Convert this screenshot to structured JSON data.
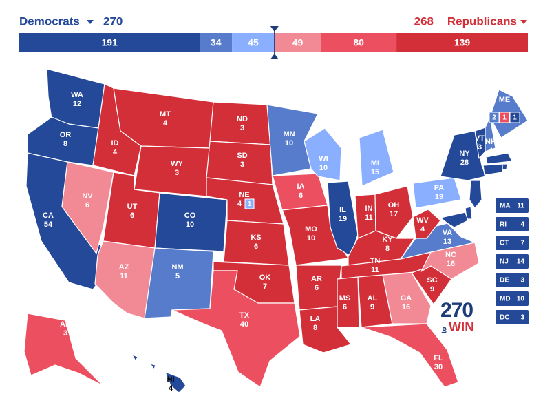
{
  "header": {
    "left_party": "Democrats",
    "left_total": 270,
    "right_total": 268,
    "right_party": "Republicans"
  },
  "ratings": [
    {
      "value": 191,
      "color": "#244999"
    },
    {
      "value": 34,
      "color": "#577ccc"
    },
    {
      "value": 45,
      "color": "#8aafff"
    },
    {
      "value": 49,
      "color": "#f28a95"
    },
    {
      "value": 80,
      "color": "#ec5060"
    },
    {
      "value": 139,
      "color": "#d22f38"
    }
  ],
  "states": [
    {
      "label": "WA",
      "ev": 12,
      "rating": 0
    },
    {
      "label": "OR",
      "ev": 8,
      "rating": 0
    },
    {
      "label": "CA",
      "ev": 54,
      "rating": 0
    },
    {
      "label": "NV",
      "ev": 6,
      "rating": 3
    },
    {
      "label": "ID",
      "ev": 4,
      "rating": 5
    },
    {
      "label": "MT",
      "ev": 4,
      "rating": 5
    },
    {
      "label": "WY",
      "ev": 3,
      "rating": 5
    },
    {
      "label": "UT",
      "ev": 6,
      "rating": 5
    },
    {
      "label": "AZ",
      "ev": 11,
      "rating": 3
    },
    {
      "label": "CO",
      "ev": 10,
      "rating": 0
    },
    {
      "label": "NM",
      "ev": 5,
      "rating": 1
    },
    {
      "label": "ND",
      "ev": 3,
      "rating": 5
    },
    {
      "label": "SD",
      "ev": 3,
      "rating": 5
    },
    {
      "label": "NE",
      "ev": 4,
      "rating": 5
    },
    {
      "label": "KS",
      "ev": 6,
      "rating": 5
    },
    {
      "label": "OK",
      "ev": 7,
      "rating": 5
    },
    {
      "label": "TX",
      "ev": 40,
      "rating": 4
    },
    {
      "label": "MN",
      "ev": 10,
      "rating": 1
    },
    {
      "label": "IA",
      "ev": 6,
      "rating": 4
    },
    {
      "label": "MO",
      "ev": 10,
      "rating": 5
    },
    {
      "label": "AR",
      "ev": 6,
      "rating": 5
    },
    {
      "label": "LA",
      "ev": 8,
      "rating": 5
    },
    {
      "label": "WI",
      "ev": 10,
      "rating": 2
    },
    {
      "label": "IL",
      "ev": 19,
      "rating": 0
    },
    {
      "label": "MI",
      "ev": 15,
      "rating": 2
    },
    {
      "label": "IN",
      "ev": 11,
      "rating": 5
    },
    {
      "label": "OH",
      "ev": 17,
      "rating": 5
    },
    {
      "label": "KY",
      "ev": 8,
      "rating": 5
    },
    {
      "label": "TN",
      "ev": 11,
      "rating": 5
    },
    {
      "label": "MS",
      "ev": 6,
      "rating": 5
    },
    {
      "label": "AL",
      "ev": 9,
      "rating": 5
    },
    {
      "label": "GA",
      "ev": 16,
      "rating": 3
    },
    {
      "label": "FL",
      "ev": 30,
      "rating": 4
    },
    {
      "label": "SC",
      "ev": 9,
      "rating": 5
    },
    {
      "label": "NC",
      "ev": 16,
      "rating": 3
    },
    {
      "label": "VA",
      "ev": 13,
      "rating": 1
    },
    {
      "label": "WV",
      "ev": 4,
      "rating": 5
    },
    {
      "label": "PA",
      "ev": 19,
      "rating": 2
    },
    {
      "label": "NY",
      "ev": 28,
      "rating": 0
    },
    {
      "label": "VT",
      "ev": 3,
      "rating": 0
    },
    {
      "label": "NH",
      "ev": 4,
      "rating": 1
    },
    {
      "label": "AK",
      "ev": 3,
      "rating": 4
    },
    {
      "label": "HI",
      "ev": 4,
      "rating": 0
    },
    {
      "label": "ME",
      "rating": 1,
      "splits": [
        {
          "ev": 2,
          "rating": 1
        },
        {
          "ev": 1,
          "rating": 4
        },
        {
          "ev": 1,
          "rating": 0
        }
      ]
    }
  ],
  "nebraska_district": {
    "ev": 1,
    "rating": 2
  },
  "small_states": [
    {
      "label": "MA",
      "ev": 11,
      "rating": 0
    },
    {
      "label": "RI",
      "ev": 4,
      "rating": 0
    },
    {
      "label": "CT",
      "ev": 7,
      "rating": 0
    },
    {
      "label": "NJ",
      "ev": 14,
      "rating": 0
    },
    {
      "label": "DE",
      "ev": 3,
      "rating": 0
    },
    {
      "label": "MD",
      "ev": 10,
      "rating": 0
    },
    {
      "label": "DC",
      "ev": 3,
      "rating": 0
    }
  ],
  "logo": {
    "number": "270",
    "small": "to",
    "word": "WIN"
  }
}
